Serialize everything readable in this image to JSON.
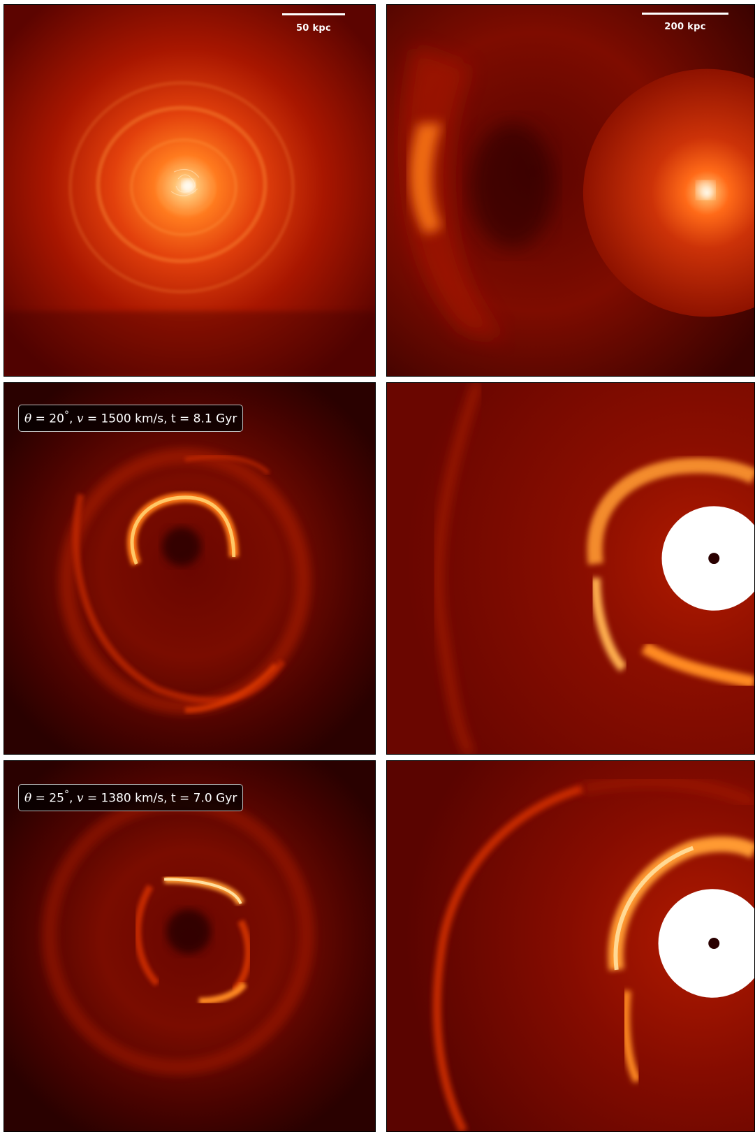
{
  "figure": {
    "colormap": "hot",
    "background_color": "#ffffff",
    "colors": {
      "dark": "#3a0200",
      "mid": "#b01e00",
      "bright": "#ff7a14",
      "hot": "#ffe9b0",
      "white": "#ffffff"
    },
    "panels": [
      {
        "id": "row1-left",
        "scale_bar_label": "50 kpc"
      },
      {
        "id": "row1-right",
        "scale_bar_label": "200 kpc"
      },
      {
        "id": "row2-left",
        "params": {
          "theta_symbol": "θ",
          "theta_value": " = 20",
          "degree": "°",
          "v_symbol": "v",
          "v_value": " = 1500 km/s",
          "t_text": ", t = 8.1 Gyr"
        }
      },
      {
        "id": "row2-right"
      },
      {
        "id": "row3-left",
        "params": {
          "theta_symbol": "θ",
          "theta_value": " = 25",
          "degree": "°",
          "v_symbol": "v",
          "v_value": " = 1380 km/s",
          "t_text": ", t = 7.0 Gyr"
        }
      },
      {
        "id": "row3-right"
      }
    ]
  }
}
